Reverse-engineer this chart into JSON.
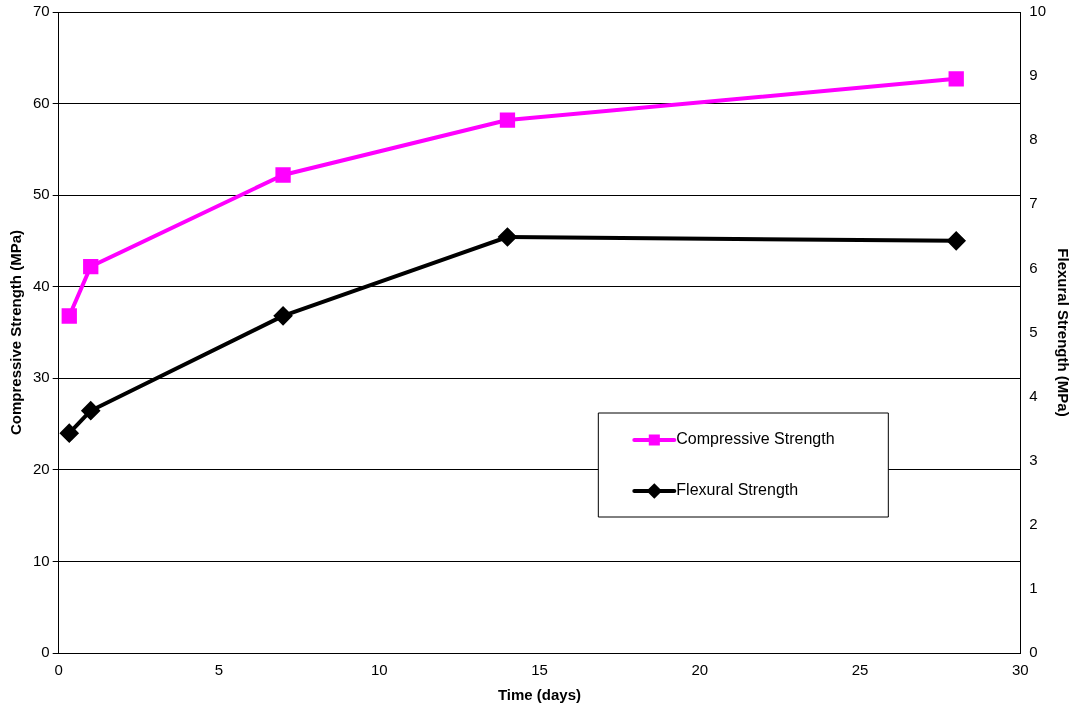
{
  "chart_data": {
    "type": "line",
    "xlabel": "Time (days)",
    "ylabel": "Compressive Strength (MPa)",
    "y2label": "Flexural Strength (MPa)",
    "xlim": [
      0,
      30
    ],
    "xticks": [
      0,
      5,
      10,
      15,
      20,
      25,
      30
    ],
    "ylim": [
      0,
      70
    ],
    "yticks": [
      0,
      10,
      20,
      30,
      40,
      50,
      60,
      70
    ],
    "y2lim": [
      0,
      10
    ],
    "y2ticks": [
      0,
      1,
      2,
      3,
      4,
      5,
      6,
      7,
      8,
      9,
      10
    ],
    "grid": "y",
    "legend": "bottom right",
    "line_style": "solid",
    "x": [
      0.33,
      1,
      7,
      14,
      28
    ],
    "series": [
      {
        "name": "Compressive Strength",
        "color": "#ff00ff",
        "marker": "square",
        "values": [
          36.8,
          42.2,
          52.2,
          58.2,
          62.7
        ]
      },
      {
        "name": "Flexural Strength",
        "color": "#000000",
        "marker": "diamond",
        "axis": "y2",
        "values": [
          3.43,
          3.78,
          5.26,
          6.49,
          6.43
        ]
      }
    ]
  }
}
